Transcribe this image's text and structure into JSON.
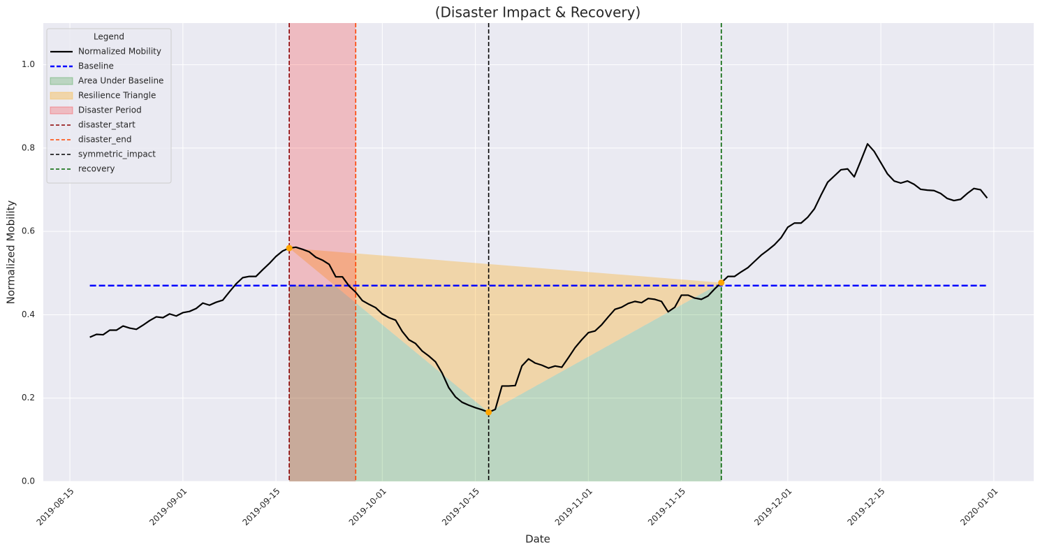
{
  "chart_data": {
    "type": "line",
    "title": "(Disaster Impact & Recovery)",
    "x_label": "Date",
    "y_label": "Normalized Mobility",
    "x": [
      "2019-08-18",
      "2019-08-19",
      "2019-08-20",
      "2019-08-21",
      "2019-08-22",
      "2019-08-23",
      "2019-08-24",
      "2019-08-25",
      "2019-08-26",
      "2019-08-27",
      "2019-08-28",
      "2019-08-29",
      "2019-08-30",
      "2019-08-31",
      "2019-09-01",
      "2019-09-02",
      "2019-09-03",
      "2019-09-04",
      "2019-09-05",
      "2019-09-06",
      "2019-09-07",
      "2019-09-08",
      "2019-09-09",
      "2019-09-10",
      "2019-09-11",
      "2019-09-12",
      "2019-09-13",
      "2019-09-14",
      "2019-09-15",
      "2019-09-16",
      "2019-09-17",
      "2019-09-18",
      "2019-09-19",
      "2019-09-20",
      "2019-09-21",
      "2019-09-22",
      "2019-09-23",
      "2019-09-24",
      "2019-09-25",
      "2019-09-26",
      "2019-09-27",
      "2019-09-28",
      "2019-09-29",
      "2019-09-30",
      "2019-10-01",
      "2019-10-02",
      "2019-10-03",
      "2019-10-04",
      "2019-10-05",
      "2019-10-06",
      "2019-10-07",
      "2019-10-08",
      "2019-10-09",
      "2019-10-10",
      "2019-10-11",
      "2019-10-12",
      "2019-10-13",
      "2019-10-14",
      "2019-10-15",
      "2019-10-16",
      "2019-10-17",
      "2019-10-18",
      "2019-10-19",
      "2019-10-20",
      "2019-10-21",
      "2019-10-22",
      "2019-10-23",
      "2019-10-24",
      "2019-10-25",
      "2019-10-26",
      "2019-10-27",
      "2019-10-28",
      "2019-10-29",
      "2019-10-30",
      "2019-10-31",
      "2019-11-01",
      "2019-11-02",
      "2019-11-03",
      "2019-11-04",
      "2019-11-05",
      "2019-11-06",
      "2019-11-07",
      "2019-11-08",
      "2019-11-09",
      "2019-11-10",
      "2019-11-11",
      "2019-11-12",
      "2019-11-13",
      "2019-11-14",
      "2019-11-15",
      "2019-11-16",
      "2019-11-17",
      "2019-11-18",
      "2019-11-19",
      "2019-11-20",
      "2019-11-21",
      "2019-11-22",
      "2019-11-23",
      "2019-11-24",
      "2019-11-25",
      "2019-11-26",
      "2019-11-27",
      "2019-11-28",
      "2019-11-29",
      "2019-11-30",
      "2019-12-01",
      "2019-12-02",
      "2019-12-03",
      "2019-12-04",
      "2019-12-05",
      "2019-12-06",
      "2019-12-07",
      "2019-12-08",
      "2019-12-09",
      "2019-12-10",
      "2019-12-11",
      "2019-12-12",
      "2019-12-13",
      "2019-12-14",
      "2019-12-15",
      "2019-12-16",
      "2019-12-17",
      "2019-12-18",
      "2019-12-19",
      "2019-12-20",
      "2019-12-21",
      "2019-12-22",
      "2019-12-23",
      "2019-12-24",
      "2019-12-25",
      "2019-12-26",
      "2019-12-27",
      "2019-12-28",
      "2019-12-29",
      "2019-12-30",
      "2019-12-31"
    ],
    "series": [
      {
        "name": "Normalized Mobility",
        "color": "#000000",
        "values": [
          0.346,
          0.353,
          0.352,
          0.363,
          0.363,
          0.373,
          0.368,
          0.365,
          0.375,
          0.386,
          0.395,
          0.393,
          0.402,
          0.397,
          0.405,
          0.408,
          0.415,
          0.428,
          0.423,
          0.43,
          0.435,
          0.455,
          0.474,
          0.489,
          0.492,
          0.492,
          0.508,
          0.523,
          0.54,
          0.553,
          0.56,
          0.562,
          0.557,
          0.551,
          0.538,
          0.531,
          0.521,
          0.491,
          0.491,
          0.469,
          0.454,
          0.434,
          0.425,
          0.417,
          0.402,
          0.393,
          0.387,
          0.36,
          0.34,
          0.331,
          0.313,
          0.301,
          0.287,
          0.26,
          0.225,
          0.203,
          0.19,
          0.183,
          0.177,
          0.172,
          0.166,
          0.173,
          0.229,
          0.229,
          0.23,
          0.277,
          0.294,
          0.284,
          0.279,
          0.272,
          0.277,
          0.274,
          0.297,
          0.321,
          0.34,
          0.357,
          0.361,
          0.376,
          0.395,
          0.413,
          0.418,
          0.427,
          0.432,
          0.429,
          0.439,
          0.437,
          0.432,
          0.407,
          0.418,
          0.447,
          0.447,
          0.44,
          0.437,
          0.445,
          0.462,
          0.477,
          0.492,
          0.492,
          0.503,
          0.513,
          0.528,
          0.543,
          0.555,
          0.568,
          0.585,
          0.61,
          0.62,
          0.62,
          0.634,
          0.654,
          0.687,
          0.718,
          0.733,
          0.748,
          0.75,
          0.731,
          0.77,
          0.81,
          0.792,
          0.765,
          0.738,
          0.721,
          0.716,
          0.721,
          0.713,
          0.701,
          0.699,
          0.698,
          0.691,
          0.679,
          0.674,
          0.677,
          0.691,
          0.703,
          0.7,
          0.68
        ]
      }
    ],
    "baseline": {
      "name": "Baseline",
      "value": 0.47,
      "color": "#0000ff"
    },
    "areas": [
      {
        "name": "Area Under Baseline",
        "color": "#008000"
      },
      {
        "name": "Resilience Triangle",
        "color": "#ffa500"
      },
      {
        "name": "Disaster Period",
        "color": "#ff0000"
      }
    ],
    "events": [
      {
        "name": "disaster_start",
        "x": "2019-09-17",
        "color": "#8b0000"
      },
      {
        "name": "disaster_end",
        "x": "2019-09-27",
        "color": "#ff4500"
      },
      {
        "name": "symmetric_impact",
        "x": "2019-10-17",
        "color": "#000000"
      },
      {
        "name": "recovery",
        "x": "2019-11-21",
        "color": "#006400"
      }
    ],
    "triangle": {
      "x": [
        "2019-09-17",
        "2019-10-17",
        "2019-11-21"
      ],
      "values": [
        0.56,
        0.166,
        0.477
      ],
      "color": "#ffa500"
    },
    "xlim": [
      "2019-08-11",
      "2020-01-07"
    ],
    "xticks": [
      "2019-08-15",
      "2019-09-01",
      "2019-09-15",
      "2019-10-01",
      "2019-10-15",
      "2019-11-01",
      "2019-11-15",
      "2019-12-01",
      "2019-12-15",
      "2020-01-01"
    ],
    "ylim": [
      0,
      1.1
    ],
    "yticks": [
      {
        "value": 0,
        "label": "0.0"
      },
      0.2,
      0.4,
      0.6,
      0.8,
      {
        "value": 1,
        "label": "1.0"
      }
    ],
    "grid": true,
    "legend": {
      "title": "Legend",
      "position": "upper left"
    }
  }
}
